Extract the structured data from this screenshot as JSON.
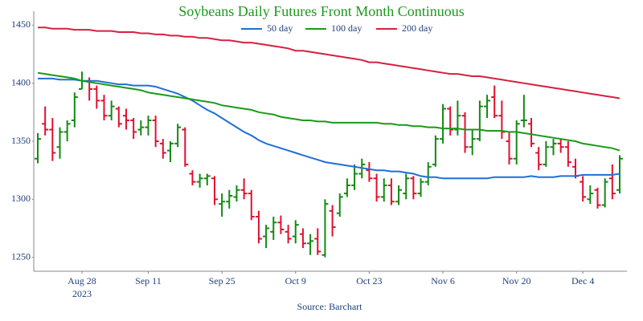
{
  "chart_data": {
    "type": "ohlc",
    "title": "Soybeans Daily Futures Front Month Continuous",
    "source": "Source: Barchart",
    "x": [
      "2023-08-18",
      "2023-08-21",
      "2023-08-22",
      "2023-08-23",
      "2023-08-24",
      "2023-08-25",
      "2023-08-28",
      "2023-08-29",
      "2023-08-30",
      "2023-08-31",
      "2023-09-01",
      "2023-09-05",
      "2023-09-06",
      "2023-09-07",
      "2023-09-08",
      "2023-09-11",
      "2023-09-12",
      "2023-09-13",
      "2023-09-14",
      "2023-09-15",
      "2023-09-18",
      "2023-09-19",
      "2023-09-20",
      "2023-09-21",
      "2023-09-22",
      "2023-09-25",
      "2023-09-26",
      "2023-09-27",
      "2023-09-28",
      "2023-09-29",
      "2023-10-02",
      "2023-10-03",
      "2023-10-04",
      "2023-10-05",
      "2023-10-06",
      "2023-10-09",
      "2023-10-10",
      "2023-10-11",
      "2023-10-12",
      "2023-10-13",
      "2023-10-16",
      "2023-10-17",
      "2023-10-18",
      "2023-10-19",
      "2023-10-20",
      "2023-10-23",
      "2023-10-24",
      "2023-10-25",
      "2023-10-26",
      "2023-10-27",
      "2023-10-30",
      "2023-10-31",
      "2023-11-01",
      "2023-11-02",
      "2023-11-03",
      "2023-11-06",
      "2023-11-07",
      "2023-11-08",
      "2023-11-09",
      "2023-11-10",
      "2023-11-13",
      "2023-11-14",
      "2023-11-15",
      "2023-11-16",
      "2023-11-17",
      "2023-11-20",
      "2023-11-21",
      "2023-11-22",
      "2023-11-24",
      "2023-11-27",
      "2023-11-28",
      "2023-11-29",
      "2023-11-30",
      "2023-12-01",
      "2023-12-04",
      "2023-12-05",
      "2023-12-06",
      "2023-12-07",
      "2023-12-08",
      "2023-12-11"
    ],
    "open": [
      1335,
      1365,
      1360,
      1345,
      1358,
      1368,
      1395,
      1402,
      1395,
      1385,
      1372,
      1378,
      1372,
      1368,
      1360,
      1362,
      1368,
      1348,
      1342,
      1348,
      1360,
      1322,
      1315,
      1318,
      1318,
      1296,
      1298,
      1302,
      1308,
      1305,
      1285,
      1268,
      1272,
      1280,
      1272,
      1268,
      1270,
      1262,
      1266,
      1252,
      1290,
      1288,
      1305,
      1312,
      1322,
      1325,
      1318,
      1302,
      1312,
      1298,
      1305,
      1318,
      1305,
      1315,
      1330,
      1352,
      1378,
      1360,
      1372,
      1345,
      1352,
      1380,
      1388,
      1372,
      1350,
      1335,
      1368,
      1365,
      1340,
      1330,
      1345,
      1348,
      1345,
      1328,
      1315,
      1300,
      1308,
      1295,
      1318,
      1308
    ],
    "high": [
      1357,
      1380,
      1370,
      1362,
      1368,
      1392,
      1410,
      1405,
      1398,
      1390,
      1385,
      1380,
      1378,
      1370,
      1368,
      1372,
      1372,
      1352,
      1350,
      1365,
      1362,
      1325,
      1322,
      1322,
      1320,
      1305,
      1308,
      1312,
      1318,
      1308,
      1290,
      1278,
      1285,
      1286,
      1278,
      1282,
      1275,
      1270,
      1275,
      1300,
      1295,
      1305,
      1318,
      1330,
      1335,
      1332,
      1322,
      1318,
      1318,
      1312,
      1322,
      1320,
      1318,
      1332,
      1355,
      1382,
      1380,
      1385,
      1375,
      1360,
      1385,
      1390,
      1398,
      1385,
      1358,
      1368,
      1390,
      1370,
      1345,
      1350,
      1352,
      1352,
      1350,
      1335,
      1320,
      1312,
      1310,
      1318,
      1330,
      1338
    ],
    "low": [
      1331,
      1355,
      1333,
      1335,
      1350,
      1362,
      1395,
      1385,
      1378,
      1368,
      1368,
      1362,
      1360,
      1352,
      1355,
      1355,
      1345,
      1335,
      1332,
      1345,
      1328,
      1312,
      1310,
      1312,
      1295,
      1285,
      1292,
      1298,
      1300,
      1282,
      1262,
      1258,
      1265,
      1270,
      1262,
      1262,
      1258,
      1252,
      1252,
      1250,
      1268,
      1285,
      1302,
      1308,
      1318,
      1315,
      1298,
      1298,
      1295,
      1295,
      1300,
      1300,
      1302,
      1312,
      1328,
      1348,
      1355,
      1355,
      1340,
      1338,
      1350,
      1370,
      1370,
      1352,
      1330,
      1330,
      1362,
      1345,
      1325,
      1328,
      1338,
      1340,
      1328,
      1318,
      1298,
      1296,
      1292,
      1293,
      1300,
      1305
    ],
    "close": [
      1352,
      1360,
      1340,
      1358,
      1365,
      1388,
      1402,
      1395,
      1385,
      1372,
      1380,
      1365,
      1368,
      1358,
      1362,
      1368,
      1350,
      1340,
      1348,
      1362,
      1330,
      1315,
      1318,
      1320,
      1300,
      1298,
      1303,
      1308,
      1305,
      1285,
      1266,
      1275,
      1280,
      1274,
      1266,
      1278,
      1262,
      1264,
      1255,
      1296,
      1276,
      1302,
      1312,
      1322,
      1330,
      1318,
      1302,
      1312,
      1298,
      1308,
      1318,
      1305,
      1315,
      1328,
      1352,
      1378,
      1360,
      1372,
      1345,
      1352,
      1380,
      1385,
      1372,
      1358,
      1335,
      1365,
      1368,
      1348,
      1330,
      1345,
      1348,
      1345,
      1332,
      1320,
      1302,
      1305,
      1295,
      1315,
      1305,
      1335
    ],
    "up_color": "#138a13",
    "down_color": "#e0102f",
    "series": [
      {
        "name": "50 day",
        "color": "#1f6fd6",
        "values": [
          1404,
          1404,
          1404,
          1403,
          1403,
          1403,
          1402,
          1402,
          1402,
          1401,
          1400,
          1399,
          1399,
          1398,
          1398,
          1398,
          1397,
          1395,
          1393,
          1391,
          1388,
          1385,
          1381,
          1377,
          1374,
          1370,
          1366,
          1362,
          1358,
          1355,
          1351,
          1348,
          1346,
          1344,
          1342,
          1340,
          1338,
          1336,
          1334,
          1332,
          1331,
          1330,
          1329,
          1328,
          1327,
          1326,
          1325,
          1325,
          1324,
          1324,
          1323,
          1322,
          1320,
          1319,
          1319,
          1318,
          1318,
          1318,
          1318,
          1318,
          1318,
          1318,
          1319,
          1319,
          1319,
          1319,
          1319,
          1320,
          1319,
          1319,
          1319,
          1320,
          1320,
          1320,
          1321,
          1321,
          1321,
          1321,
          1321,
          1322
        ]
      },
      {
        "name": "100 day",
        "color": "#1a9a1a",
        "values": [
          1409,
          1408,
          1407,
          1406,
          1405,
          1404,
          1402,
          1401,
          1400,
          1399,
          1398,
          1397,
          1396,
          1395,
          1394,
          1392,
          1391,
          1390,
          1389,
          1388,
          1387,
          1386,
          1385,
          1384,
          1383,
          1381,
          1380,
          1379,
          1378,
          1377,
          1375,
          1374,
          1373,
          1371,
          1370,
          1369,
          1368,
          1368,
          1367,
          1367,
          1366,
          1366,
          1366,
          1366,
          1366,
          1366,
          1366,
          1365,
          1365,
          1364,
          1364,
          1363,
          1363,
          1362,
          1362,
          1361,
          1361,
          1361,
          1360,
          1360,
          1360,
          1359,
          1359,
          1359,
          1358,
          1358,
          1357,
          1356,
          1355,
          1354,
          1353,
          1352,
          1351,
          1350,
          1348,
          1347,
          1346,
          1345,
          1344,
          1342
        ]
      },
      {
        "name": "200 day",
        "color": "#d62040",
        "values": [
          1448,
          1448,
          1447,
          1447,
          1447,
          1446,
          1446,
          1446,
          1445,
          1445,
          1445,
          1444,
          1444,
          1444,
          1443,
          1443,
          1442,
          1442,
          1441,
          1441,
          1440,
          1440,
          1439,
          1439,
          1438,
          1437,
          1437,
          1436,
          1435,
          1435,
          1434,
          1433,
          1432,
          1431,
          1430,
          1428,
          1428,
          1427,
          1426,
          1425,
          1424,
          1423,
          1422,
          1421,
          1420,
          1418,
          1418,
          1417,
          1416,
          1415,
          1414,
          1413,
          1412,
          1411,
          1410,
          1409,
          1408,
          1408,
          1407,
          1406,
          1406,
          1405,
          1404,
          1403,
          1402,
          1401,
          1400,
          1399,
          1398,
          1397,
          1396,
          1395,
          1394,
          1393,
          1392,
          1391,
          1390,
          1389,
          1388,
          1387
        ]
      }
    ],
    "legend": "top",
    "ylim": [
      1238,
      1462
    ],
    "yticks": [
      1250,
      1300,
      1350,
      1400,
      1450
    ],
    "xticks": [
      {
        "value": "2023-08-28",
        "label": "Aug 28"
      },
      {
        "value": "2023-09-11",
        "label": "Sep 11"
      },
      {
        "value": "2023-09-25",
        "label": "Sep 25"
      },
      {
        "value": "2023-10-09",
        "label": "Oct 9"
      },
      {
        "value": "2023-10-23",
        "label": "Oct 23"
      },
      {
        "value": "2023-11-06",
        "label": "Nov 6"
      },
      {
        "value": "2023-11-20",
        "label": "Nov 20"
      },
      {
        "value": "2023-12-04",
        "label": "Dec 4"
      }
    ],
    "x_year_label": "2023"
  }
}
